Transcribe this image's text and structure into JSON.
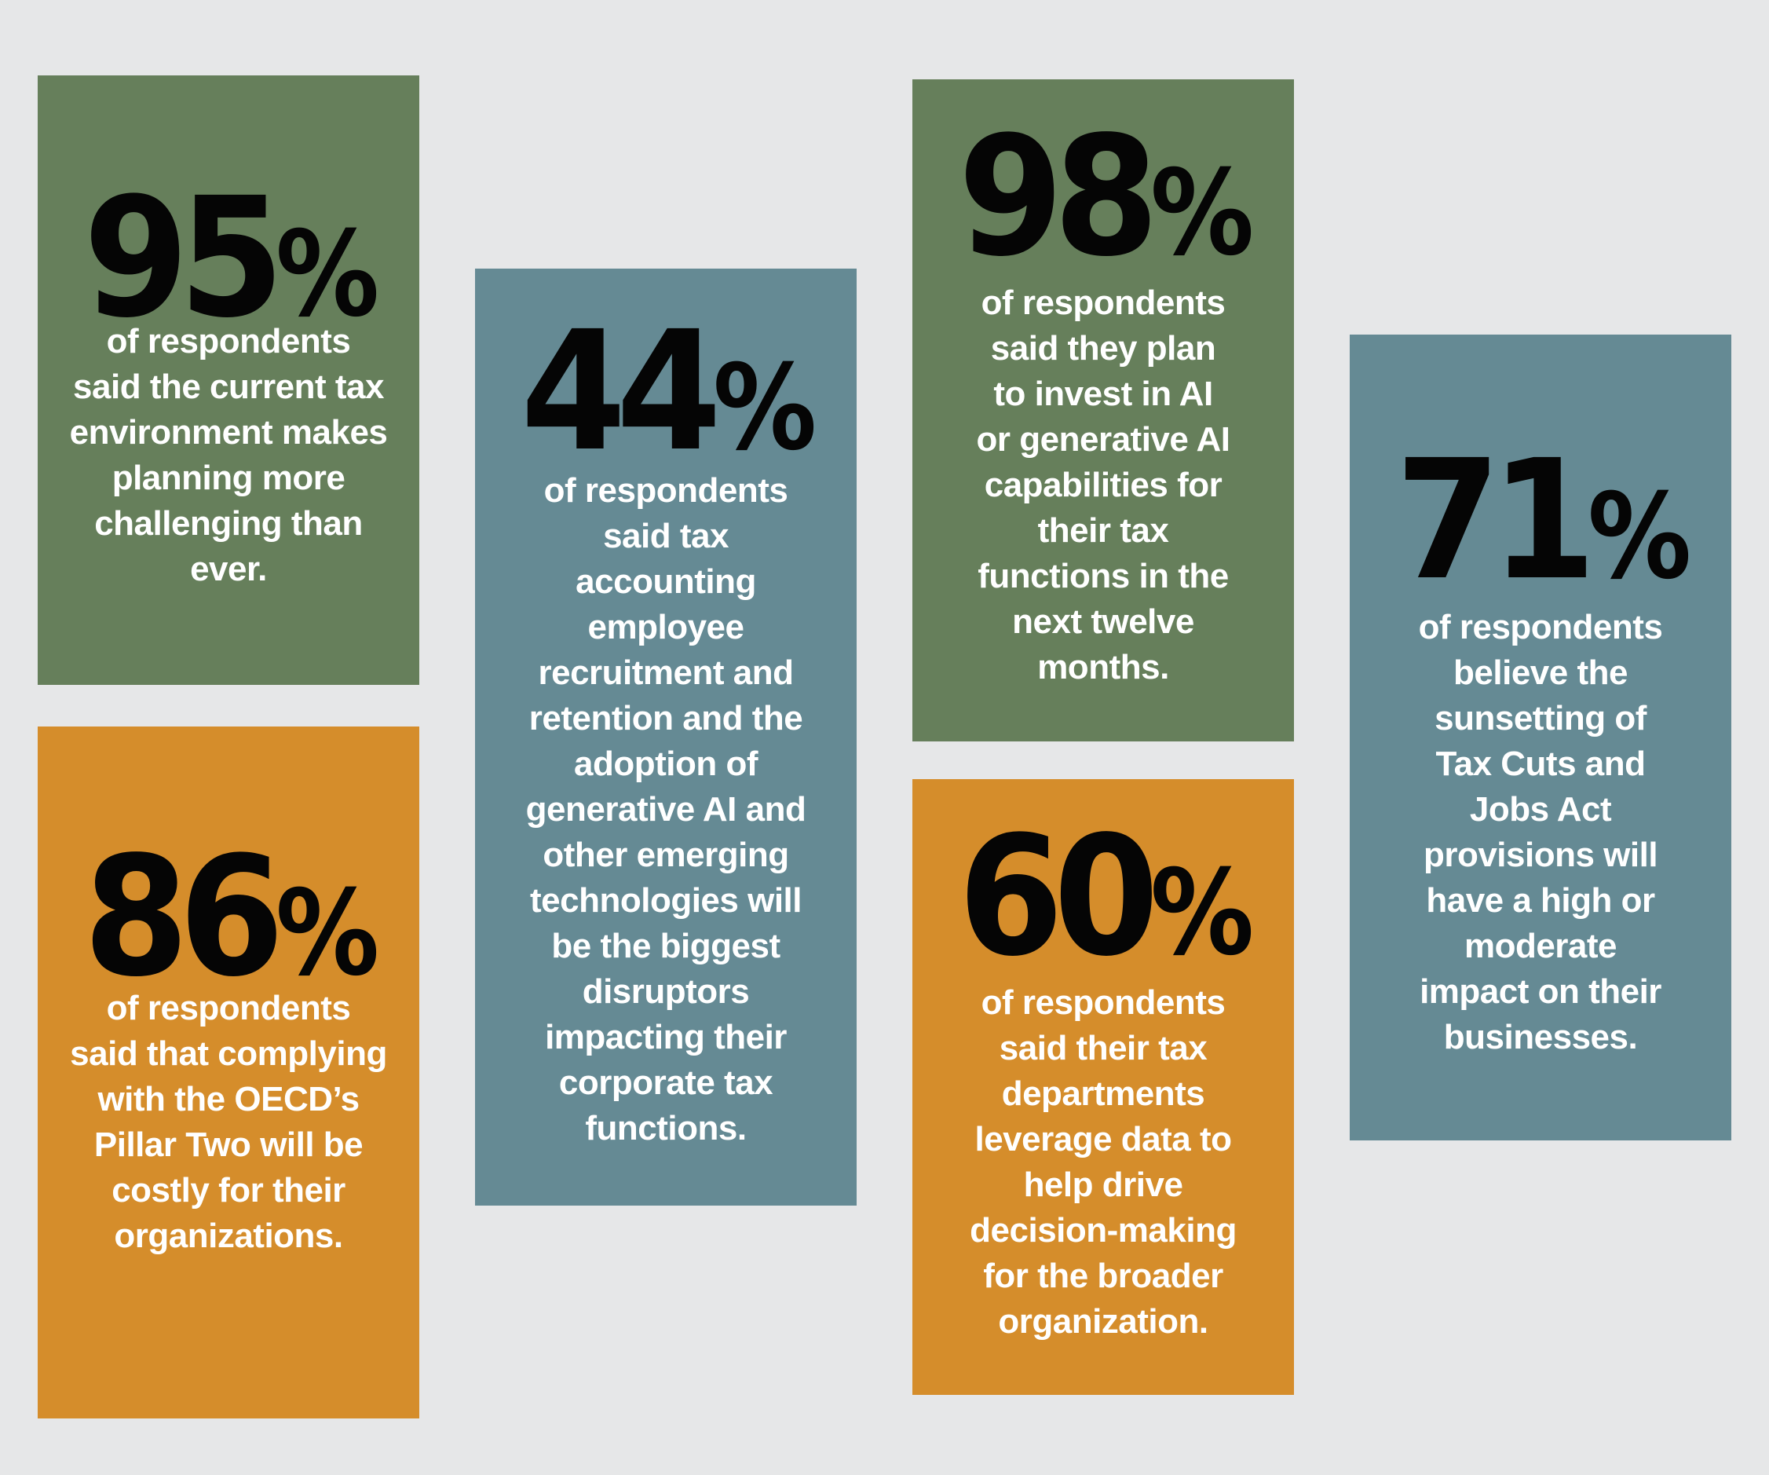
{
  "colors": {
    "background": "#e6e7e8",
    "green": "#667f5b",
    "blue": "#658a94",
    "orange": "#d58d2b",
    "figure_text": "#050505",
    "body_text": "#ffffff"
  },
  "stats": {
    "s95": {
      "number": "95",
      "percent": "%",
      "text": "of respondents said the current tax environment makes planning more challenging than ever."
    },
    "s86": {
      "number": "86",
      "percent": "%",
      "text": "of respondents said that complying with the OECD’s Pillar Two will be costly for their organizations."
    },
    "s44": {
      "number": "44",
      "percent": "%",
      "text": "of respondents said tax accounting employee recruitment and retention and the adoption of generative AI and other emerging technologies will be the biggest disruptors impacting their corporate tax functions."
    },
    "s98": {
      "number": "98",
      "percent": "%",
      "text": "of respondents said they plan to invest in AI or generative AI capabilities for their tax functions in the next twelve months."
    },
    "s60": {
      "number": "60",
      "percent": "%",
      "text": "of respondents said their tax departments leverage data to help drive decision-making for the broader organization."
    },
    "s71": {
      "number": "71",
      "percent": "%",
      "text": "of respondents believe the sunsetting of Tax Cuts and Jobs Act provisions will have a high or moderate impact on their businesses."
    }
  }
}
